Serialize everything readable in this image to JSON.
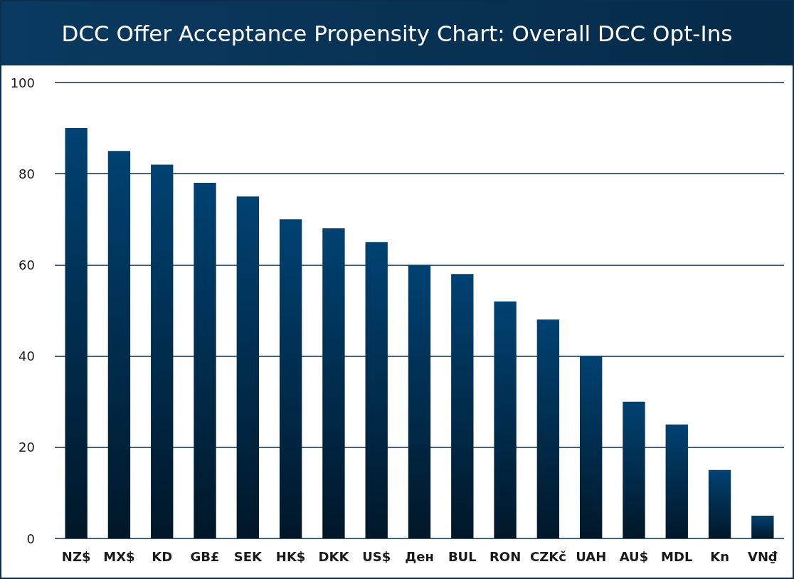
{
  "chart_data": {
    "type": "bar",
    "title": "DCC Offer Acceptance Propensity Chart: Overall DCC Opt-Ins",
    "categories": [
      "NZ$",
      "MX$",
      "KD",
      "GB£",
      "SEK",
      "HK$",
      "DKK",
      "US$",
      "Ден",
      "BUL",
      "RON",
      "CZKč",
      "UAH",
      "AU$",
      "MDL",
      "Kn",
      "VN₫"
    ],
    "values": [
      90,
      85,
      82,
      78,
      75,
      70,
      68,
      65,
      60,
      58,
      52,
      48,
      40,
      30,
      25,
      15,
      5
    ],
    "color": "#004272",
    "ylim": [
      0,
      100
    ],
    "yticks": [
      0,
      20,
      40,
      60,
      80,
      100
    ],
    "grid": "y"
  }
}
